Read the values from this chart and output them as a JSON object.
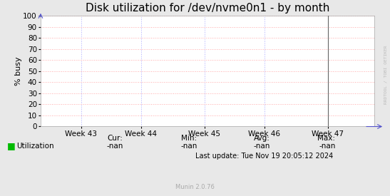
{
  "title": "Disk utilization for /dev/nvme0n1 - by month",
  "ylabel": "% busy",
  "ylim": [
    0,
    100
  ],
  "yticks": [
    0,
    10,
    20,
    30,
    40,
    50,
    60,
    70,
    80,
    90,
    100
  ],
  "xtick_labels": [
    "Week 43",
    "Week 44",
    "Week 45",
    "Week 46",
    "Week 47"
  ],
  "xtick_positions": [
    0.12,
    0.3,
    0.49,
    0.67,
    0.86
  ],
  "background_color": "#e8e8e8",
  "plot_bg_color": "#ffffff",
  "grid_color": "#ffaaaa",
  "grid_color_v": "#aaaaff",
  "grid_style": ":",
  "title_fontsize": 11,
  "axis_fontsize": 8,
  "tick_fontsize": 7.5,
  "legend_label": "Utilization",
  "legend_color": "#00bb00",
  "cur_label": "Cur:",
  "cur_value": "-nan",
  "min_label": "Min:",
  "min_value": "-nan",
  "avg_label": "Avg:",
  "avg_value": "-nan",
  "max_label": "Max:",
  "max_value": "-nan",
  "last_update": "Last update: Tue Nov 19 20:05:12 2024",
  "munin_version": "Munin 2.0.76",
  "watermark": "RRDTOOL / TOBI OETIKER",
  "vline_x": 0.86
}
